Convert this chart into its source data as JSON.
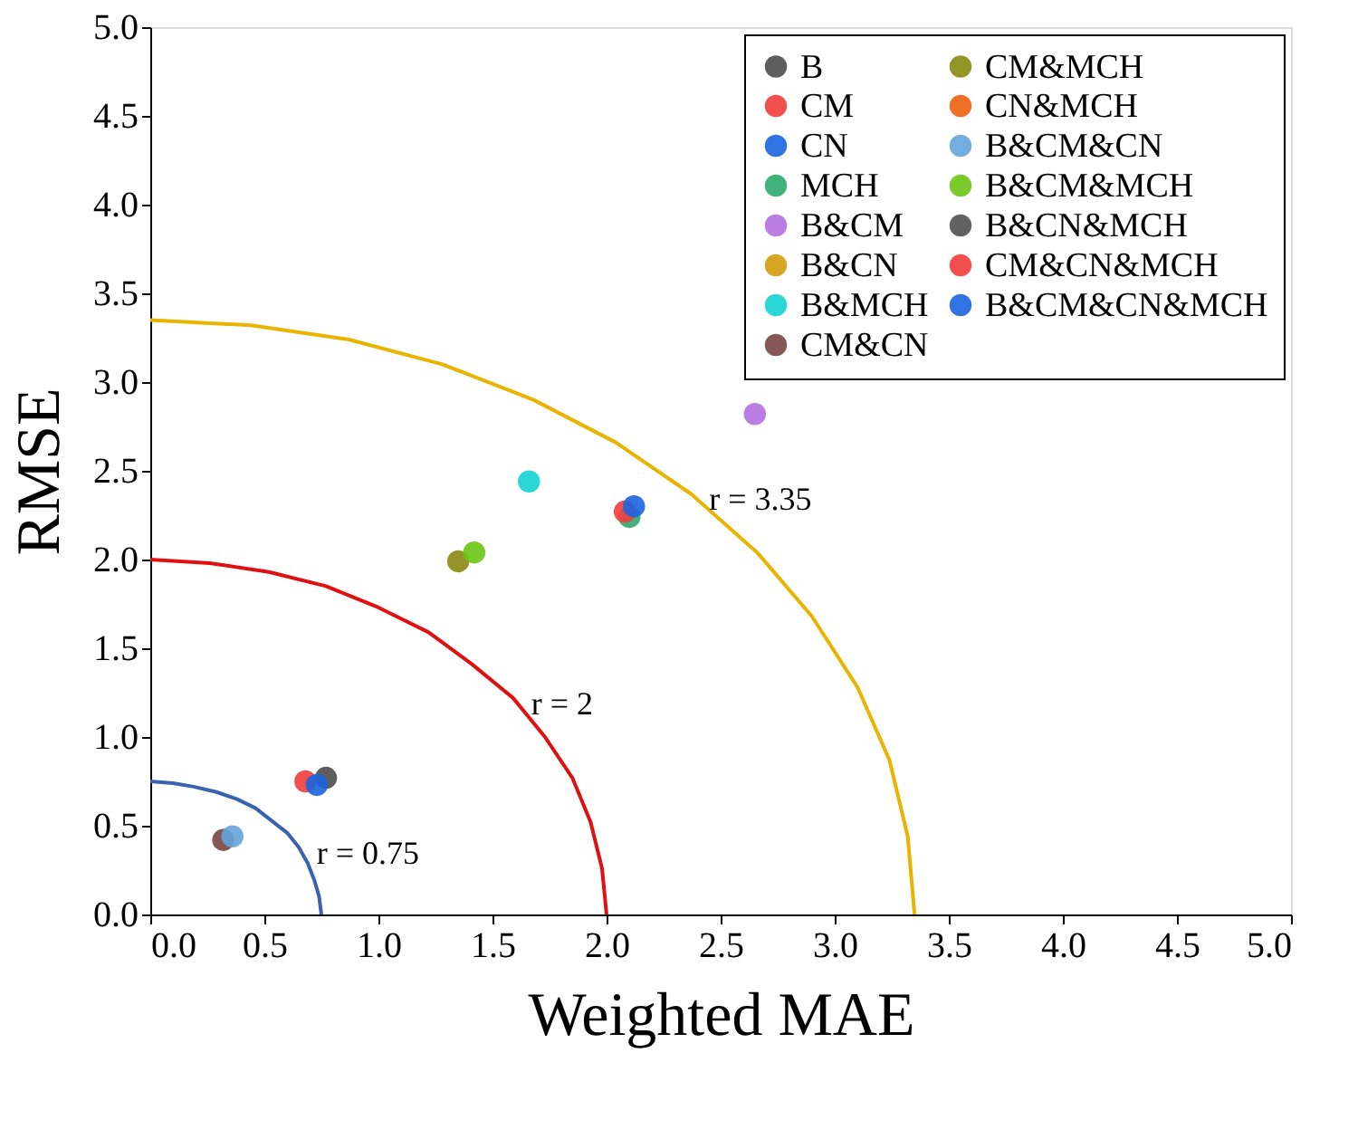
{
  "chart_data": {
    "type": "scatter",
    "xlabel": "Weighted MAE",
    "ylabel": "RMSE",
    "xlim": [
      0,
      5
    ],
    "ylim": [
      0,
      5
    ],
    "xticks": [
      {
        "value": 0,
        "label": "0.0"
      },
      0.5,
      {
        "value": 1,
        "label": "1.0"
      },
      1.5,
      {
        "value": 2,
        "label": "2.0"
      },
      2.5,
      {
        "value": 3,
        "label": "3.0"
      },
      3.5,
      {
        "value": 4,
        "label": "4.0"
      },
      4.5,
      {
        "value": 5,
        "label": "5.0"
      }
    ],
    "yticks": [
      {
        "value": 0,
        "label": "0.0"
      },
      0.5,
      {
        "value": 1,
        "label": "1.0"
      },
      1.5,
      {
        "value": 2,
        "label": "2.0"
      },
      2.5,
      {
        "value": 3,
        "label": "3.0"
      },
      3.5,
      {
        "value": 4,
        "label": "4.0"
      },
      4.5,
      {
        "value": 5,
        "label": "5.0"
      }
    ],
    "grid": false,
    "legend": "top right",
    "marker": "circle",
    "series": [
      {
        "name": "B",
        "color": "#4d4d4d",
        "x": [
          0.77
        ],
        "values": [
          0.77
        ]
      },
      {
        "name": "CM",
        "color": "#f23c3c",
        "x": [
          0.68
        ],
        "values": [
          0.75
        ]
      },
      {
        "name": "CN",
        "color": "#1c64e0",
        "x": [
          0.73
        ],
        "values": [
          0.73
        ]
      },
      {
        "name": "MCH",
        "color": "#2eaa6c",
        "x": [
          2.1
        ],
        "values": [
          2.24
        ]
      },
      {
        "name": "B&CM",
        "color": "#b26fe0",
        "x": [
          2.65
        ],
        "values": [
          2.82
        ]
      },
      {
        "name": "B&CN",
        "color": "#d49b0c",
        "x": [
          null
        ],
        "values": [
          null
        ]
      },
      {
        "name": "B&MCH",
        "color": "#14d2d2",
        "x": [
          1.66
        ],
        "values": [
          2.44
        ]
      },
      {
        "name": "CM&CN",
        "color": "#7a4545",
        "x": [
          0.32
        ],
        "values": [
          0.42
        ]
      },
      {
        "name": "CM&MCH",
        "color": "#8a8a10",
        "x": [
          1.35
        ],
        "values": [
          1.99
        ]
      },
      {
        "name": "CN&MCH",
        "color": "#f06010",
        "x": [
          null
        ],
        "values": [
          null
        ]
      },
      {
        "name": "B&CM&CN",
        "color": "#64a5dc",
        "x": [
          0.36
        ],
        "values": [
          0.44
        ]
      },
      {
        "name": "B&CM&MCH",
        "color": "#6cc414",
        "x": [
          1.42
        ],
        "values": [
          2.04
        ]
      },
      {
        "name": "B&CN&MCH",
        "color": "#505050",
        "x": [
          null
        ],
        "values": [
          null
        ]
      },
      {
        "name": "CM&CN&MCH",
        "color": "#f23c3c",
        "x": [
          2.08
        ],
        "values": [
          2.27
        ]
      },
      {
        "name": "B&CM&CN&MCH",
        "color": "#1c64e0",
        "x": [
          2.12
        ],
        "values": [
          2.3
        ]
      },
      {
        "type": "line",
        "marker": "none",
        "color": "#3a62b0",
        "x": [
          0,
          0.1,
          0.19,
          0.29,
          0.38,
          0.46,
          0.53,
          0.6,
          0.65,
          0.69,
          0.72,
          0.74,
          0.75
        ],
        "values": [
          0.75,
          0.74,
          0.72,
          0.69,
          0.65,
          0.6,
          0.53,
          0.46,
          0.38,
          0.29,
          0.19,
          0.1,
          0
        ]
      },
      {
        "type": "line",
        "marker": "none",
        "color": "#e01010",
        "x": [
          0,
          0.26,
          0.52,
          0.77,
          1.0,
          1.22,
          1.41,
          1.59,
          1.73,
          1.85,
          1.93,
          1.98,
          2.0
        ],
        "values": [
          2.0,
          1.98,
          1.93,
          1.85,
          1.73,
          1.59,
          1.41,
          1.22,
          1.0,
          0.77,
          0.52,
          0.26,
          0
        ]
      },
      {
        "type": "line",
        "marker": "none",
        "color": "#e8b400",
        "x": [
          0,
          0.44,
          0.87,
          1.28,
          1.68,
          2.04,
          2.37,
          2.66,
          2.9,
          3.1,
          3.24,
          3.32,
          3.35
        ],
        "values": [
          3.35,
          3.32,
          3.24,
          3.1,
          2.9,
          2.66,
          2.37,
          2.04,
          1.68,
          1.28,
          0.87,
          0.44,
          0
        ]
      }
    ],
    "annotations": [
      {
        "text": "r = 0.75",
        "x": 0.65,
        "y": 0.38
      },
      {
        "text": "r = 2",
        "x": 1.59,
        "y": 1.22
      },
      {
        "text": "r = 3.35",
        "x": 2.37,
        "y": 2.37
      }
    ]
  }
}
